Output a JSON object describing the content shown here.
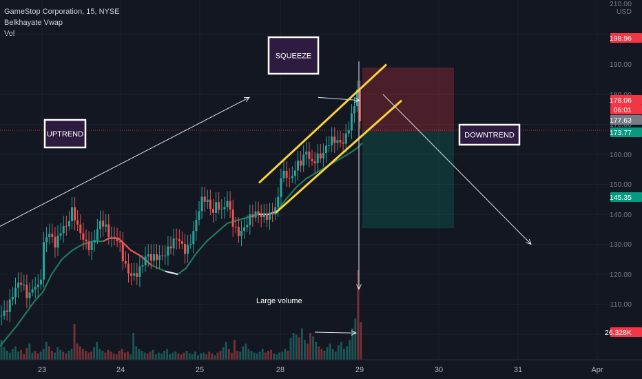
{
  "header": {
    "symbol_line": "GameStop Corporation, 15, NYSE",
    "indicator": "Belkhayate Vwap",
    "volume_label": "Vol"
  },
  "price_axis": {
    "currency": "USD",
    "ticks": [
      "110.00",
      "120.00",
      "130.00",
      "140.00",
      "150.00",
      "160.00",
      "170.00",
      "180.00",
      "190.00",
      "210.00"
    ],
    "labels": [
      {
        "text": "198.96",
        "value": 198.96,
        "color": "#f23645"
      },
      {
        "text": "178.06",
        "value": 178.06,
        "color": "#f23645"
      },
      {
        "text": "06:01",
        "value": 178.06,
        "color": "#f23645"
      },
      {
        "text": "177.63",
        "value": 177.63,
        "color": "#787b86"
      },
      {
        "text": "173.77",
        "value": 173.77,
        "color": "#089981"
      },
      {
        "text": "145.35",
        "value": 145.35,
        "color": "#089981"
      },
      {
        "text": "26.328K",
        "value": 0,
        "color": "#f23645"
      }
    ]
  },
  "time_axis": {
    "ticks": [
      "23",
      "24",
      "25",
      "28",
      "29",
      "30",
      "31",
      "Apr"
    ]
  },
  "annotations": {
    "squeeze": "SQUEEZE",
    "uptrend": "UPTREND",
    "downtrend": "DOWNTREND",
    "large_volume": "Large volume"
  },
  "colors": {
    "up": "#26a69a",
    "down": "#ef5350",
    "background": "#131722",
    "vwap": "#1f7a5c",
    "channel": "#f7d33a",
    "label_box_fill": "#2d1b40"
  },
  "chart_data": {
    "type": "candlestick",
    "title": "GameStop Corporation, 15, NYSE",
    "symbol": "NYSE:GME",
    "timeframe": "15",
    "x_ticks": [
      "23",
      "24",
      "25",
      "28",
      "29",
      "30",
      "31",
      "Apr"
    ],
    "ylim": [
      100,
      212
    ],
    "price_ticks": [
      110,
      120,
      130,
      140,
      150,
      160,
      170,
      180,
      190,
      210
    ],
    "series": [
      {
        "name": "Belkhayate Vwap",
        "type": "line"
      },
      {
        "name": "Vol",
        "type": "histogram"
      }
    ],
    "price_path": [
      [
        0,
        116
      ],
      [
        10,
        120
      ],
      [
        20,
        124
      ],
      [
        30,
        126
      ],
      [
        40,
        123
      ],
      [
        50,
        128
      ],
      [
        58,
        125
      ],
      [
        63,
        138
      ],
      [
        70,
        143
      ],
      [
        80,
        141
      ],
      [
        90,
        147
      ],
      [
        97,
        145
      ],
      [
        105,
        150
      ],
      [
        112,
        146
      ],
      [
        120,
        144
      ],
      [
        128,
        140
      ],
      [
        135,
        139
      ],
      [
        145,
        146
      ],
      [
        152,
        147
      ],
      [
        160,
        144
      ],
      [
        165,
        143
      ],
      [
        172,
        141
      ],
      [
        178,
        134
      ],
      [
        185,
        130
      ],
      [
        195,
        131
      ],
      [
        205,
        133
      ],
      [
        212,
        135
      ],
      [
        220,
        134
      ],
      [
        230,
        137
      ],
      [
        240,
        138
      ],
      [
        250,
        139
      ],
      [
        258,
        141
      ],
      [
        268,
        139
      ],
      [
        275,
        141
      ],
      [
        285,
        147
      ],
      [
        292,
        153
      ],
      [
        300,
        155
      ],
      [
        308,
        152
      ],
      [
        315,
        155
      ],
      [
        322,
        150
      ],
      [
        330,
        153
      ],
      [
        338,
        147
      ],
      [
        345,
        145
      ],
      [
        355,
        146
      ],
      [
        365,
        148
      ],
      [
        375,
        150
      ],
      [
        385,
        151
      ],
      [
        395,
        150
      ],
      [
        403,
        152
      ],
      [
        408,
        162
      ],
      [
        415,
        164
      ],
      [
        422,
        163
      ],
      [
        430,
        167
      ],
      [
        438,
        166
      ],
      [
        445,
        170
      ],
      [
        452,
        167
      ],
      [
        460,
        171
      ],
      [
        468,
        170
      ],
      [
        476,
        172
      ],
      [
        484,
        174
      ],
      [
        492,
        175
      ],
      [
        500,
        176
      ],
      [
        506,
        179
      ],
      [
        512,
        183
      ],
      [
        516,
        186
      ],
      [
        519,
        191
      ],
      [
        521,
        183
      ],
      [
        523,
        179
      ],
      [
        526,
        178.06
      ]
    ],
    "vwap_path": [
      [
        0,
        106
      ],
      [
        25,
        113
      ],
      [
        50,
        121
      ],
      [
        62,
        124
      ],
      [
        75,
        130
      ],
      [
        90,
        135
      ],
      [
        105,
        138
      ],
      [
        120,
        140
      ],
      [
        135,
        141
      ],
      [
        150,
        141
      ],
      [
        158,
        142
      ],
      [
        172,
        142
      ],
      [
        190,
        138
      ],
      [
        205,
        136
      ],
      [
        220,
        133
      ],
      [
        240,
        131
      ],
      [
        258,
        130
      ],
      [
        270,
        132
      ],
      [
        285,
        137
      ],
      [
        300,
        141
      ],
      [
        315,
        144
      ],
      [
        330,
        147
      ],
      [
        345,
        148
      ],
      [
        360,
        149
      ],
      [
        375,
        150
      ],
      [
        390,
        150
      ],
      [
        402,
        151
      ],
      [
        415,
        155
      ],
      [
        430,
        159
      ],
      [
        445,
        162
      ],
      [
        460,
        164
      ],
      [
        475,
        166
      ],
      [
        490,
        168
      ],
      [
        505,
        170
      ],
      [
        518,
        172
      ],
      [
        526,
        173.77
      ]
    ],
    "vwap_red_segment": [
      150,
      258
    ],
    "channel": [
      {
        "start": [
          376,
          160.5
        ],
        "end": [
          561,
          200
        ]
      },
      {
        "start": [
          400,
          150.5
        ],
        "end": [
          583,
          188
        ]
      }
    ],
    "short_position": {
      "entry": 177.63,
      "stop": 198.96,
      "target": 145.35,
      "x_start": 526,
      "x_end": 659
    },
    "arrows": [
      {
        "from": [
          0,
          146
        ],
        "to": [
          362,
          189
        ],
        "head": true
      },
      {
        "from": [
          462,
          189
        ],
        "to": [
          522,
          188
        ],
        "head": true
      },
      {
        "from": [
          556,
          190
        ],
        "to": [
          771,
          140
        ],
        "head": true
      },
      {
        "from": [
          521,
          201
        ],
        "to": [
          521,
          125
        ],
        "head": true
      },
      {
        "from": [
          457,
          110.7
        ],
        "to": [
          517,
          110.4
        ],
        "head": true
      }
    ],
    "volume": [
      22,
      14,
      10,
      8,
      12,
      15,
      9,
      11,
      6,
      13,
      18,
      8,
      10,
      7,
      9,
      12,
      20,
      15,
      10,
      8,
      14,
      11,
      9,
      7,
      10,
      12,
      40,
      18,
      15,
      12,
      10,
      8,
      9,
      14,
      20,
      12,
      10,
      8,
      11,
      9,
      7,
      6,
      10,
      12,
      8,
      9,
      6,
      30,
      15,
      12,
      10,
      8,
      7,
      9,
      11,
      6,
      8,
      7,
      10,
      12,
      6,
      8,
      9,
      7,
      6,
      8,
      10,
      7,
      6,
      9,
      5,
      7,
      8,
      6,
      9,
      7,
      5,
      8,
      10,
      14,
      20,
      12,
      8,
      22,
      10,
      9,
      15,
      18,
      12,
      10,
      8,
      7,
      9,
      12,
      8,
      10,
      11,
      7,
      6,
      8,
      9,
      12,
      10,
      24,
      30,
      28,
      25,
      35,
      22,
      18,
      30,
      26,
      20,
      15,
      12,
      10,
      14,
      18,
      12,
      9,
      16,
      20,
      12,
      15,
      22,
      35,
      46,
      100,
      42
    ],
    "volume_spike_label": "26.328K"
  }
}
